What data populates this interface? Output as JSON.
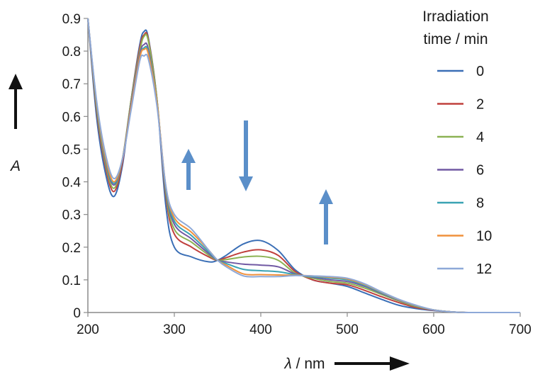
{
  "chart_data": {
    "type": "line",
    "title": "",
    "xlabel_symbol": "λ",
    "xlabel_unit": " / nm",
    "ylabel": "A",
    "xlim": [
      200,
      700
    ],
    "ylim": [
      0,
      0.9
    ],
    "x_ticks": [
      "200",
      "300",
      "400",
      "500",
      "600",
      "700"
    ],
    "y_ticks": [
      "0",
      "0.1",
      "0.2",
      "0.3",
      "0.4",
      "0.5",
      "0.6",
      "0.7",
      "0.8",
      "0.9"
    ],
    "grid": false,
    "legend": {
      "title_lines": [
        "Irradiation",
        "time / min"
      ],
      "placement": "right"
    },
    "x": [
      200,
      210,
      220,
      230,
      240,
      250,
      260,
      265,
      270,
      280,
      290,
      300,
      320,
      340,
      350,
      360,
      380,
      400,
      420,
      440,
      460,
      480,
      500,
      520,
      540,
      560,
      580,
      600,
      620,
      640,
      660,
      700
    ],
    "series": [
      {
        "name": "0",
        "color": "#3b6fb6",
        "values": [
          0.9,
          0.6,
          0.43,
          0.355,
          0.45,
          0.65,
          0.82,
          0.86,
          0.84,
          0.65,
          0.33,
          0.2,
          0.17,
          0.155,
          0.16,
          0.175,
          0.21,
          0.22,
          0.19,
          0.13,
          0.1,
          0.09,
          0.08,
          0.06,
          0.04,
          0.022,
          0.012,
          0.006,
          0.002,
          0.0,
          0.0,
          0.0
        ]
      },
      {
        "name": "2",
        "color": "#c0403d",
        "values": [
          0.9,
          0.62,
          0.45,
          0.37,
          0.46,
          0.65,
          0.81,
          0.85,
          0.835,
          0.65,
          0.36,
          0.24,
          0.2,
          0.17,
          0.16,
          0.168,
          0.185,
          0.192,
          0.175,
          0.125,
          0.1,
          0.09,
          0.085,
          0.068,
          0.048,
          0.03,
          0.015,
          0.007,
          0.002,
          0.0,
          0.0,
          0.0
        ]
      },
      {
        "name": "4",
        "color": "#8cb253",
        "values": [
          0.9,
          0.63,
          0.46,
          0.38,
          0.47,
          0.65,
          0.8,
          0.845,
          0.83,
          0.65,
          0.37,
          0.255,
          0.215,
          0.175,
          0.16,
          0.162,
          0.17,
          0.172,
          0.16,
          0.12,
          0.105,
          0.095,
          0.09,
          0.075,
          0.055,
          0.035,
          0.018,
          0.008,
          0.002,
          0.0,
          0.0,
          0.0
        ]
      },
      {
        "name": "6",
        "color": "#7159a3",
        "values": [
          0.9,
          0.64,
          0.47,
          0.39,
          0.47,
          0.64,
          0.79,
          0.82,
          0.805,
          0.64,
          0.38,
          0.27,
          0.225,
          0.18,
          0.16,
          0.155,
          0.148,
          0.145,
          0.14,
          0.118,
          0.108,
          0.1,
          0.095,
          0.08,
          0.058,
          0.037,
          0.02,
          0.008,
          0.002,
          0.0,
          0.0,
          0.0
        ]
      },
      {
        "name": "8",
        "color": "#3aa3b3",
        "values": [
          0.9,
          0.64,
          0.475,
          0.395,
          0.47,
          0.63,
          0.78,
          0.81,
          0.795,
          0.64,
          0.385,
          0.28,
          0.235,
          0.185,
          0.16,
          0.15,
          0.132,
          0.128,
          0.125,
          0.116,
          0.11,
          0.105,
          0.1,
          0.083,
          0.06,
          0.038,
          0.02,
          0.008,
          0.002,
          0.0,
          0.0,
          0.0
        ]
      },
      {
        "name": "10",
        "color": "#f0913c",
        "values": [
          0.9,
          0.645,
          0.48,
          0.4,
          0.47,
          0.63,
          0.78,
          0.805,
          0.79,
          0.64,
          0.39,
          0.29,
          0.245,
          0.19,
          0.16,
          0.145,
          0.118,
          0.116,
          0.115,
          0.114,
          0.112,
          0.108,
          0.103,
          0.086,
          0.062,
          0.039,
          0.021,
          0.008,
          0.002,
          0.0,
          0.0,
          0.0
        ]
      },
      {
        "name": "12",
        "color": "#8ea9d8",
        "values": [
          0.9,
          0.65,
          0.49,
          0.41,
          0.47,
          0.62,
          0.77,
          0.785,
          0.775,
          0.63,
          0.39,
          0.3,
          0.255,
          0.19,
          0.16,
          0.14,
          0.112,
          0.11,
          0.11,
          0.113,
          0.112,
          0.11,
          0.105,
          0.088,
          0.063,
          0.04,
          0.022,
          0.008,
          0.002,
          0.0,
          0.0,
          0.0
        ]
      }
    ]
  }
}
